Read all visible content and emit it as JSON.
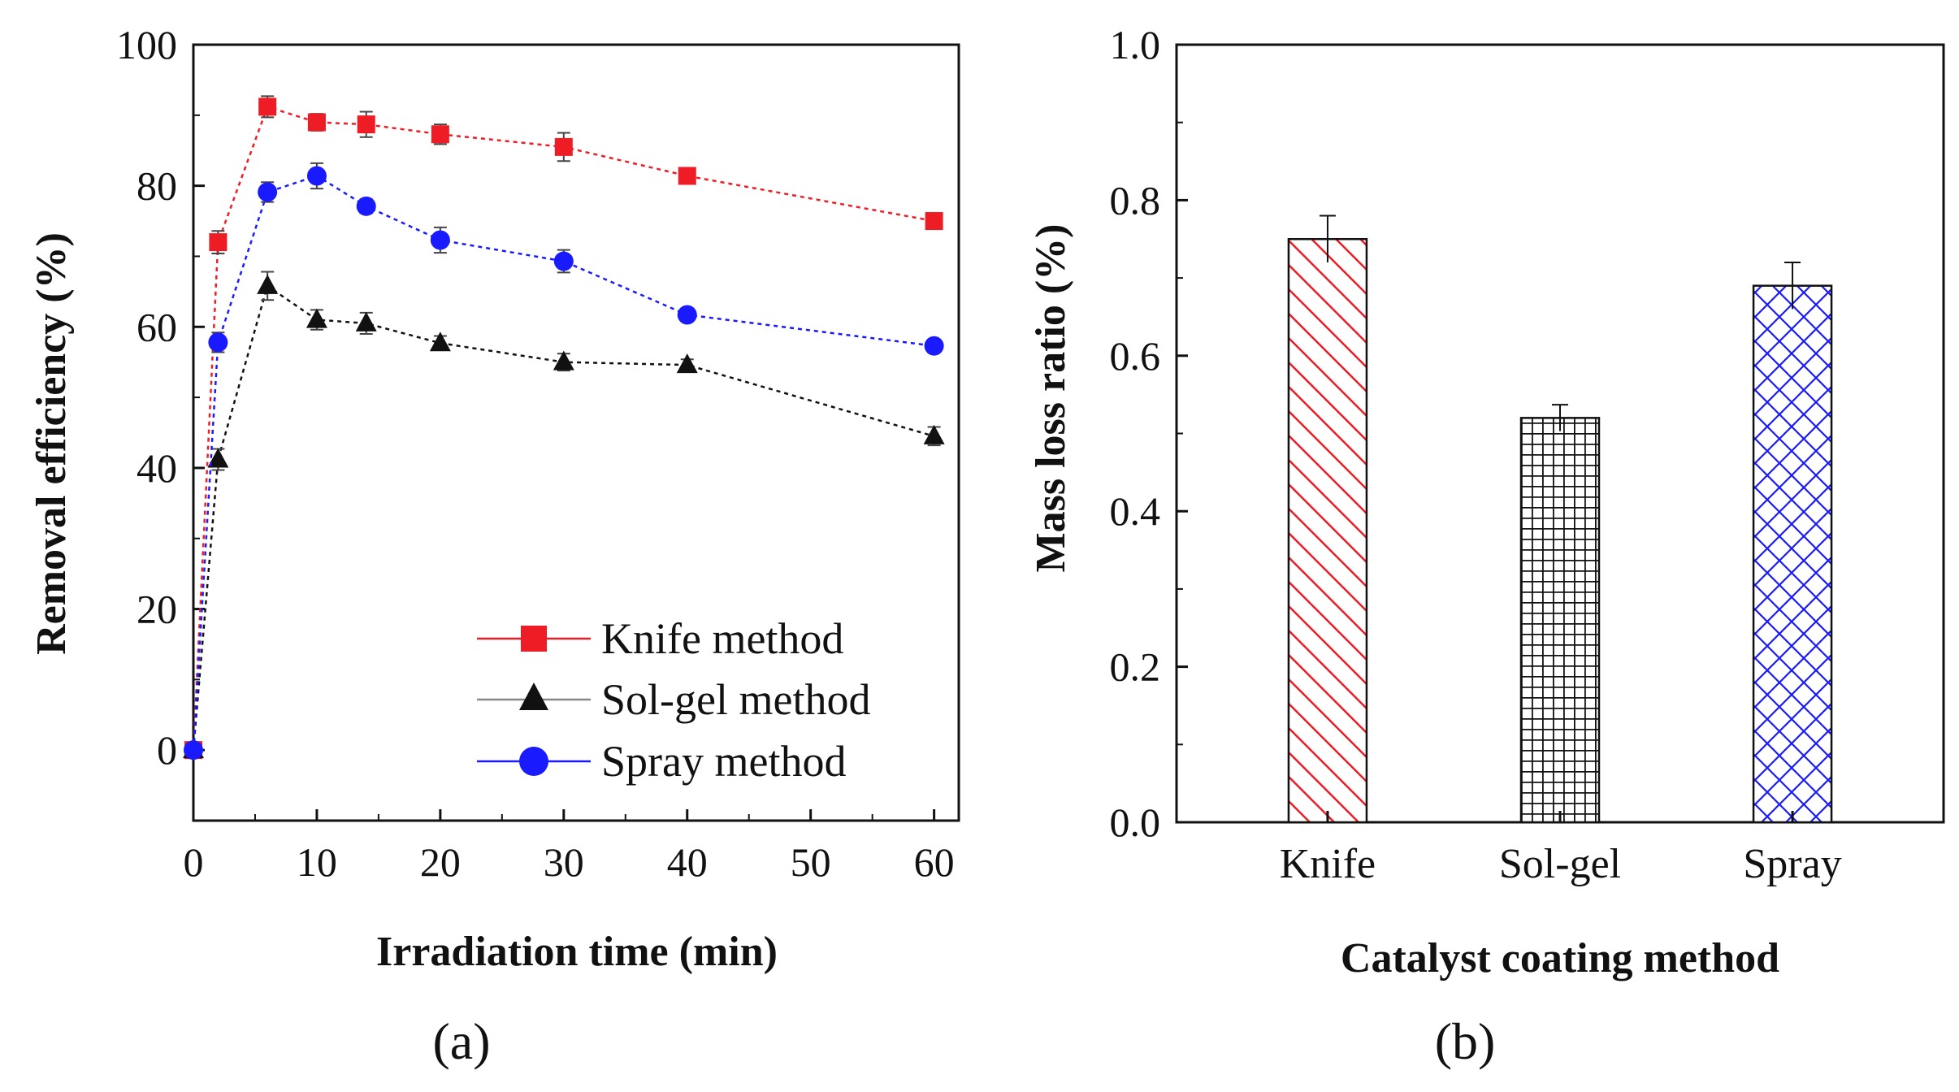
{
  "chart_data": [
    {
      "type": "line",
      "panel_label": "(a)",
      "xlabel": "Irradiation time (min)",
      "ylabel": "Removal efficiency (%)",
      "xlim": [
        0,
        62
      ],
      "ylim": [
        -10,
        100
      ],
      "x_ticks": [
        "0",
        "10",
        "20",
        "30",
        "40",
        "50",
        "60"
      ],
      "y_ticks": [
        "0",
        "20",
        "40",
        "60",
        "80",
        "100"
      ],
      "legend_position": "bottom-right",
      "series": [
        {
          "name": "Knife method",
          "marker": "square",
          "color": "#ee1c25",
          "x": [
            0,
            2,
            6,
            10,
            14,
            20,
            30,
            40,
            60
          ],
          "y": [
            0,
            72,
            91.2,
            89,
            88.7,
            87.3,
            85.5,
            81.4,
            75
          ],
          "err": [
            0,
            1.6,
            1.5,
            1.2,
            1.8,
            1.4,
            2.0,
            0.8,
            1.0
          ]
        },
        {
          "name": "Sol-gel method",
          "marker": "triangle",
          "color": "#111111",
          "x": [
            0,
            2,
            6,
            10,
            14,
            20,
            30,
            40,
            60
          ],
          "y": [
            0,
            41.2,
            65.8,
            61,
            60.5,
            57.7,
            55,
            54.6,
            44.5
          ],
          "err": [
            0,
            1.5,
            2.0,
            1.4,
            1.5,
            1.0,
            1.2,
            0.8,
            1.3
          ]
        },
        {
          "name": "Spray method",
          "marker": "circle",
          "color": "#1a1aff",
          "x": [
            0,
            2,
            6,
            10,
            14,
            20,
            30,
            40,
            60
          ],
          "y": [
            0,
            57.8,
            79.1,
            81.4,
            77.1,
            72.3,
            69.3,
            61.7,
            57.3
          ],
          "err": [
            0,
            1.4,
            1.4,
            1.8,
            1.0,
            1.8,
            1.6,
            0.9,
            0.9
          ]
        }
      ]
    },
    {
      "type": "bar",
      "panel_label": "(b)",
      "xlabel": "Catalyst coating method",
      "ylabel": "Mass loss ratio (%)",
      "ylim": [
        0,
        1.0
      ],
      "y_ticks": [
        "0.0",
        "0.2",
        "0.4",
        "0.6",
        "0.8",
        "1.0"
      ],
      "categories": [
        "Knife",
        "Sol-gel",
        "Spray"
      ],
      "values": [
        0.75,
        0.52,
        0.69
      ],
      "errors": [
        0.03,
        0.017,
        0.03
      ],
      "patterns": [
        "diagonal-hatch",
        "grid-hatch",
        "cross-hatch"
      ],
      "colors": [
        "#ee1c25",
        "#111111",
        "#1a1aff"
      ]
    }
  ]
}
